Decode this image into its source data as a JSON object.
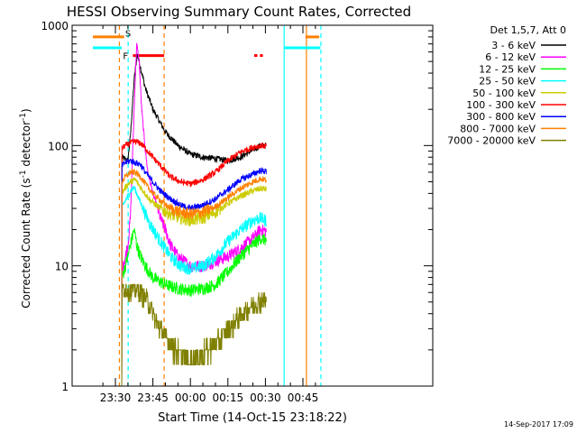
{
  "chart_data": {
    "type": "line",
    "title": "HESSI Observing Summary Count Rates, Corrected",
    "xlabel": "Start Time (14-Oct-15 23:18:22)",
    "ylabel_main": "Corrected Count Rate (s",
    "ylabel_sup1": "-1",
    "ylabel_mid": " detector",
    "ylabel_sup2": "-1",
    "ylabel_end": ")",
    "footer": "14-Sep-2017 17:09",
    "y_scale": "log",
    "ylim": [
      1,
      1000
    ],
    "xlim_minutes": [
      -8.4,
      60.4
    ],
    "x_ticks": [
      {
        "m": 0,
        "label": "23:30"
      },
      {
        "m": 15,
        "label": "23:45"
      },
      {
        "m": 30,
        "label": "00:00"
      },
      {
        "m": 45,
        "label": "00:15"
      },
      {
        "m": 60,
        "label": "00:30"
      },
      {
        "m": 75,
        "label": "00:45"
      }
    ],
    "y_ticks": [
      {
        "v": 1,
        "label": "1"
      },
      {
        "v": 10,
        "label": "10"
      },
      {
        "v": 100,
        "label": "100"
      },
      {
        "v": 1000,
        "label": "1000"
      }
    ],
    "legend_header": "Det 1,5,7, Att 0",
    "legend_position": "outside-right",
    "flags": {
      "s_label": "S",
      "f_label": "F"
    },
    "series": [
      {
        "name": "3 - 6 keV",
        "color": "#000000",
        "points": [
          [
            -8,
            0
          ],
          [
            2.5,
            0
          ],
          [
            2.6,
            80
          ],
          [
            5,
            75
          ],
          [
            6,
            120
          ],
          [
            7.5,
            350
          ],
          [
            8.7,
            580
          ],
          [
            10,
            450
          ],
          [
            12,
            300
          ],
          [
            15,
            200
          ],
          [
            20,
            130
          ],
          [
            25,
            100
          ],
          [
            30,
            85
          ],
          [
            35,
            80
          ],
          [
            40,
            78
          ],
          [
            45,
            75
          ],
          [
            50,
            80
          ],
          [
            55,
            92
          ],
          [
            58,
            100
          ],
          [
            62,
            100
          ],
          [
            65,
            92
          ],
          [
            67,
            85
          ],
          [
            69,
            70
          ],
          [
            70,
            0
          ]
        ]
      },
      {
        "name": "6 - 12 keV",
        "color": "#ff00ff",
        "points": [
          [
            -8,
            0
          ],
          [
            2.5,
            0
          ],
          [
            2.6,
            9
          ],
          [
            4,
            12
          ],
          [
            5,
            15
          ],
          [
            6,
            25
          ],
          [
            7,
            100
          ],
          [
            7.8,
            300
          ],
          [
            8.5,
            700
          ],
          [
            9.5,
            500
          ],
          [
            10.5,
            200
          ],
          [
            12,
            90
          ],
          [
            13,
            60
          ],
          [
            15,
            40
          ],
          [
            18,
            25
          ],
          [
            20,
            20
          ],
          [
            22,
            15
          ],
          [
            25,
            12
          ],
          [
            30,
            10
          ],
          [
            35,
            10
          ],
          [
            40,
            11
          ],
          [
            45,
            12
          ],
          [
            50,
            14
          ],
          [
            55,
            17
          ],
          [
            58,
            20
          ],
          [
            62,
            19
          ],
          [
            65,
            16
          ],
          [
            67,
            14
          ],
          [
            69,
            12
          ],
          [
            70,
            0
          ]
        ]
      },
      {
        "name": "12 - 25 keV",
        "color": "#00ff00",
        "points": [
          [
            -8,
            0
          ],
          [
            2.5,
            0
          ],
          [
            2.6,
            8
          ],
          [
            4,
            10
          ],
          [
            5,
            12
          ],
          [
            6,
            15
          ],
          [
            7.5,
            20
          ],
          [
            8.5,
            15
          ],
          [
            10,
            12
          ],
          [
            12,
            10
          ],
          [
            15,
            8
          ],
          [
            20,
            7
          ],
          [
            25,
            6.5
          ],
          [
            30,
            6.3
          ],
          [
            35,
            6.5
          ],
          [
            40,
            7
          ],
          [
            45,
            9
          ],
          [
            50,
            12
          ],
          [
            55,
            15
          ],
          [
            58,
            17
          ],
          [
            62,
            16
          ],
          [
            65,
            13
          ],
          [
            67,
            11
          ],
          [
            69,
            7
          ],
          [
            70,
            0
          ]
        ]
      },
      {
        "name": "25 - 50 keV",
        "color": "#00ffff",
        "points": [
          [
            -8,
            0
          ],
          [
            2.5,
            0
          ],
          [
            2.6,
            30
          ],
          [
            4,
            35
          ],
          [
            5,
            38
          ],
          [
            6,
            42
          ],
          [
            7.5,
            45
          ],
          [
            9,
            38
          ],
          [
            11,
            30
          ],
          [
            14,
            22
          ],
          [
            18,
            16
          ],
          [
            22,
            12
          ],
          [
            26,
            10
          ],
          [
            30,
            9.5
          ],
          [
            35,
            10
          ],
          [
            40,
            12
          ],
          [
            45,
            16
          ],
          [
            50,
            20
          ],
          [
            55,
            24
          ],
          [
            58,
            25
          ],
          [
            62,
            23
          ],
          [
            65,
            19
          ],
          [
            67,
            16
          ],
          [
            69,
            13
          ],
          [
            70,
            0
          ]
        ]
      },
      {
        "name": "50 - 100 keV",
        "color": "#cccc00",
        "points": [
          [
            -8,
            0
          ],
          [
            2.5,
            0
          ],
          [
            2.6,
            40
          ],
          [
            4,
            45
          ],
          [
            6,
            50
          ],
          [
            8,
            52
          ],
          [
            10,
            45
          ],
          [
            14,
            35
          ],
          [
            18,
            30
          ],
          [
            22,
            27
          ],
          [
            26,
            25
          ],
          [
            30,
            24
          ],
          [
            35,
            25
          ],
          [
            40,
            28
          ],
          [
            45,
            33
          ],
          [
            50,
            38
          ],
          [
            55,
            42
          ],
          [
            58,
            44
          ],
          [
            62,
            43
          ],
          [
            65,
            38
          ],
          [
            67,
            35
          ],
          [
            69,
            30
          ],
          [
            70,
            0
          ]
        ]
      },
      {
        "name": "100 - 300 keV",
        "color": "#ff0000",
        "points": [
          [
            -8,
            0
          ],
          [
            2.5,
            0
          ],
          [
            2.6,
            95
          ],
          [
            4,
            100
          ],
          [
            6,
            105
          ],
          [
            8,
            108
          ],
          [
            10,
            105
          ],
          [
            12,
            95
          ],
          [
            15,
            80
          ],
          [
            18,
            68
          ],
          [
            22,
            55
          ],
          [
            26,
            50
          ],
          [
            30,
            48
          ],
          [
            35,
            52
          ],
          [
            40,
            60
          ],
          [
            45,
            75
          ],
          [
            50,
            88
          ],
          [
            55,
            97
          ],
          [
            58,
            100
          ],
          [
            62,
            98
          ],
          [
            65,
            90
          ],
          [
            67,
            82
          ],
          [
            69,
            75
          ],
          [
            70,
            0
          ]
        ]
      },
      {
        "name": "300 - 800 keV",
        "color": "#0000ff",
        "points": [
          [
            -8,
            0
          ],
          [
            2.5,
            0
          ],
          [
            2.6,
            68
          ],
          [
            4,
            72
          ],
          [
            6,
            75
          ],
          [
            8,
            72
          ],
          [
            10,
            70
          ],
          [
            12,
            60
          ],
          [
            15,
            50
          ],
          [
            18,
            42
          ],
          [
            22,
            36
          ],
          [
            26,
            32
          ],
          [
            30,
            30
          ],
          [
            35,
            32
          ],
          [
            40,
            36
          ],
          [
            45,
            43
          ],
          [
            50,
            52
          ],
          [
            55,
            58
          ],
          [
            58,
            62
          ],
          [
            62,
            60
          ],
          [
            65,
            56
          ],
          [
            67,
            52
          ],
          [
            69,
            45
          ],
          [
            70,
            0
          ]
        ]
      },
      {
        "name": "800 - 7000 keV",
        "color": "#ff8000",
        "points": [
          [
            -8,
            0
          ],
          [
            2.5,
            0
          ],
          [
            2.6,
            50
          ],
          [
            4,
            55
          ],
          [
            6,
            60
          ],
          [
            8,
            60
          ],
          [
            10,
            55
          ],
          [
            12,
            48
          ],
          [
            15,
            40
          ],
          [
            18,
            35
          ],
          [
            22,
            30
          ],
          [
            26,
            28
          ],
          [
            30,
            27
          ],
          [
            35,
            28
          ],
          [
            40,
            31
          ],
          [
            45,
            37
          ],
          [
            50,
            44
          ],
          [
            55,
            50
          ],
          [
            58,
            53
          ],
          [
            62,
            51
          ],
          [
            65,
            46
          ],
          [
            67,
            42
          ],
          [
            69,
            38
          ],
          [
            70,
            0
          ]
        ]
      },
      {
        "name": "7000 - 20000 keV",
        "color": "#808000",
        "points": [
          [
            -8,
            0
          ],
          [
            2.5,
            0
          ],
          [
            2.6,
            6.5
          ],
          [
            7,
            6.5
          ],
          [
            10,
            6
          ],
          [
            12,
            5.5
          ],
          [
            14,
            4.5
          ],
          [
            16,
            3.5
          ],
          [
            18,
            3
          ],
          [
            20,
            2.5
          ],
          [
            24,
            2
          ],
          [
            28,
            1.7
          ],
          [
            30,
            1.5
          ],
          [
            33,
            1.8
          ],
          [
            36,
            2
          ],
          [
            40,
            2.2
          ],
          [
            44,
            2.8
          ],
          [
            48,
            3.5
          ],
          [
            52,
            4.2
          ],
          [
            56,
            5
          ],
          [
            60,
            5.2
          ],
          [
            63,
            5
          ],
          [
            65,
            4
          ],
          [
            67,
            3.5
          ],
          [
            69,
            2.5
          ],
          [
            70,
            0
          ]
        ]
      }
    ],
    "flag_bars": [
      {
        "id": "cyan-left",
        "color": "#00ffff",
        "m1": -9,
        "m2": 2.5,
        "v": 650
      },
      {
        "id": "orange-left",
        "color": "#ff8000",
        "m1": -9,
        "m2": 3.5,
        "v": 800
      },
      {
        "id": "cyan-right",
        "color": "#00ffff",
        "m1": 67.5,
        "m2": 82,
        "v": 650
      },
      {
        "id": "orange-right",
        "color": "#ff8000",
        "m1": 76,
        "m2": 81.5,
        "v": 800
      },
      {
        "id": "red-flare",
        "color": "#ff0000",
        "m1": 7,
        "m2": 19.5,
        "v": 560
      },
      {
        "id": "red-small-1",
        "color": "#ff0000",
        "m1": 55.5,
        "m2": 56.8,
        "v": 560
      },
      {
        "id": "red-small-2",
        "color": "#ff0000",
        "m1": 57.8,
        "m2": 59,
        "v": 560
      }
    ],
    "vert_lines": [
      {
        "id": "cyan-solid-1",
        "color": "#00ffff",
        "m": -18.6,
        "dash": false
      },
      {
        "id": "orange-dash-1",
        "color": "#ff8000",
        "m": 1.6,
        "dash": true
      },
      {
        "id": "cyan-dash-1",
        "color": "#00ffff",
        "m": 5.1,
        "dash": true
      },
      {
        "id": "orange-dash-2",
        "color": "#ff8000",
        "m": 19.5,
        "dash": true
      },
      {
        "id": "cyan-solid-2",
        "color": "#00ffff",
        "m": 67.5,
        "dash": false
      },
      {
        "id": "orange-solid-3",
        "color": "#ff8000",
        "m": 76.4,
        "dash": false
      },
      {
        "id": "cyan-dash-3",
        "color": "#00ffff",
        "m": 82.2,
        "dash": true
      }
    ]
  }
}
